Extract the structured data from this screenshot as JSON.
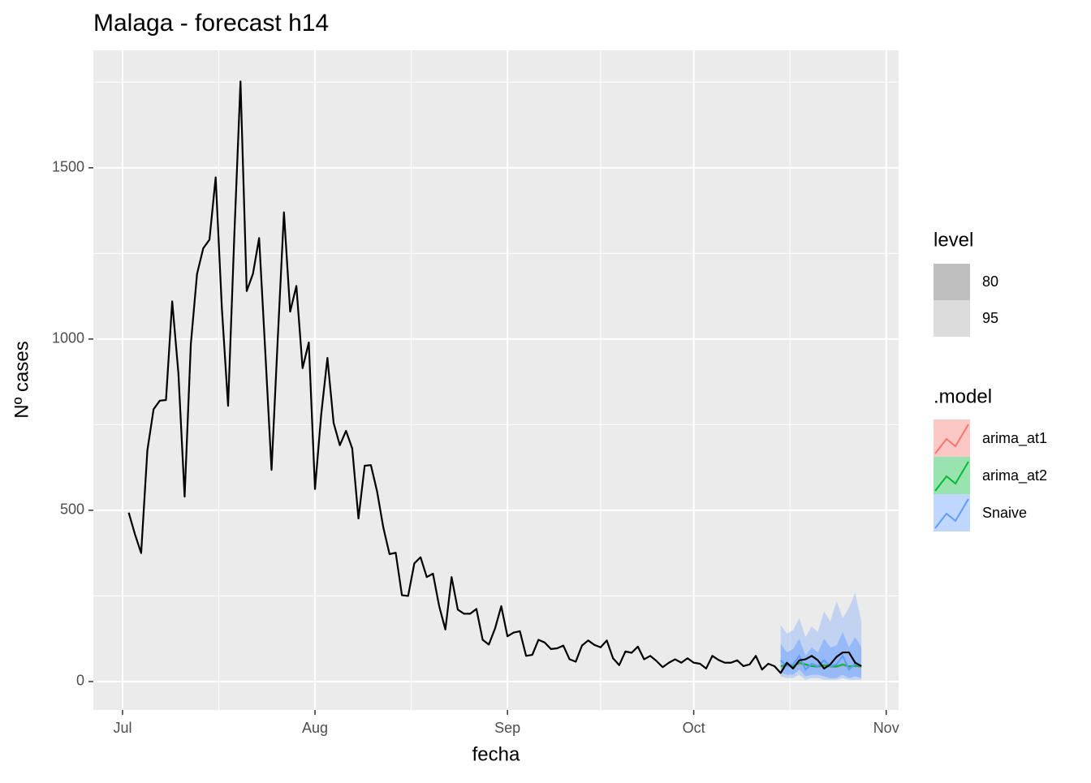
{
  "chart_data": {
    "type": "line",
    "title": "Malaga - forecast h14",
    "x_label": "fecha",
    "y_label": "Nº cases",
    "xlim": [
      -4.7,
      125
    ],
    "xticks": [
      {
        "value": 0,
        "label": "Jul"
      },
      {
        "value": 31,
        "label": "Aug"
      },
      {
        "value": 62,
        "label": "Sep"
      },
      {
        "value": 92,
        "label": "Oct"
      },
      {
        "value": 123,
        "label": "Nov"
      }
    ],
    "minor_xgrid": [
      15.5,
      46.5,
      77,
      107.5
    ],
    "ylim": [
      -83,
      1843
    ],
    "yticks": [
      0,
      500,
      1000,
      1500
    ],
    "minor_ygrid": [
      250,
      750,
      1250,
      1750
    ],
    "grid": true,
    "actual": {
      "color": "#000000",
      "x": [
        1,
        2,
        3,
        4,
        5,
        6,
        7,
        8,
        9,
        10,
        11,
        12,
        13,
        14,
        15,
        16,
        17,
        18,
        19,
        20,
        21,
        22,
        23,
        24,
        25,
        26,
        27,
        28,
        29,
        30,
        31,
        32,
        33,
        34,
        35,
        36,
        37,
        38,
        39,
        40,
        41,
        42,
        43,
        44,
        45,
        46,
        47,
        48,
        49,
        50,
        51,
        52,
        53,
        54,
        55,
        56,
        57,
        58,
        59,
        60,
        61,
        62,
        63,
        64,
        65,
        66,
        67,
        68,
        69,
        70,
        71,
        72,
        73,
        74,
        75,
        76,
        77,
        78,
        79,
        80,
        81,
        82,
        83,
        84,
        85,
        86,
        87,
        88,
        89,
        90,
        91,
        92,
        93,
        94,
        95,
        96,
        97,
        98,
        99,
        100,
        101,
        102,
        103,
        104,
        105,
        106,
        107,
        108,
        109,
        110,
        111,
        112,
        113,
        114,
        115,
        116,
        117,
        118,
        119
      ],
      "values": [
        493,
        430,
        375,
        675,
        795,
        820,
        822,
        1110,
        900,
        540,
        985,
        1190,
        1265,
        1290,
        1472,
        1090,
        805,
        1300,
        1752,
        1140,
        1190,
        1295,
        960,
        618,
        1000,
        1370,
        1080,
        1155,
        915,
        990,
        562,
        780,
        945,
        755,
        690,
        732,
        680,
        476,
        630,
        632,
        555,
        450,
        372,
        376,
        252,
        250,
        345,
        363,
        305,
        315,
        220,
        152,
        305,
        210,
        198,
        198,
        212,
        122,
        108,
        155,
        220,
        132,
        143,
        147,
        75,
        78,
        122,
        114,
        95,
        97,
        105,
        65,
        58,
        105,
        120,
        107,
        100,
        120,
        68,
        48,
        88,
        84,
        102,
        65,
        75,
        60,
        42,
        55,
        65,
        55,
        68,
        55,
        52,
        38,
        75,
        63,
        55,
        55,
        62,
        45,
        50,
        75,
        35,
        52,
        45,
        25,
        55,
        38,
        62,
        65,
        75,
        62,
        38,
        50,
        72,
        85,
        85,
        55,
        45
      ]
    },
    "forecast_x": [
      106,
      107,
      108,
      109,
      110,
      111,
      112,
      113,
      114,
      115,
      116,
      117,
      118,
      119
    ],
    "level_legend": {
      "title": "level",
      "levels": [
        80,
        95
      ],
      "colors": [
        "#bfbfbf",
        "#dcdcdc"
      ]
    },
    "model_legend_title": ".model",
    "series": [
      {
        "name": "arima_at1",
        "color": "#F8766D",
        "values": [
          44,
          47,
          45,
          53,
          49,
          45,
          43,
          47,
          44,
          43,
          49,
          44,
          45,
          43
        ]
      },
      {
        "name": "arima_at2",
        "color": "#00BA38",
        "values": [
          45,
          48,
          45,
          55,
          50,
          45,
          44,
          48,
          44,
          44,
          50,
          44,
          46,
          44
        ]
      },
      {
        "name": "Snaive",
        "color": "#619CFF",
        "values": [
          62,
          45,
          50,
          75,
          35,
          52,
          45,
          62,
          45,
          50,
          75,
          35,
          52,
          45
        ],
        "lo80": [
          25,
          20,
          20,
          35,
          15,
          20,
          20,
          15,
          10,
          10,
          20,
          10,
          15,
          10
        ],
        "hi80": [
          110,
          85,
          95,
          125,
          75,
          100,
          85,
          125,
          100,
          105,
          145,
          100,
          130,
          100
        ],
        "lo95": [
          15,
          10,
          10,
          20,
          5,
          10,
          10,
          5,
          5,
          5,
          10,
          5,
          5,
          5
        ],
        "hi95": [
          165,
          140,
          150,
          185,
          130,
          160,
          145,
          205,
          175,
          235,
          185,
          215,
          260,
          175
        ]
      }
    ]
  }
}
